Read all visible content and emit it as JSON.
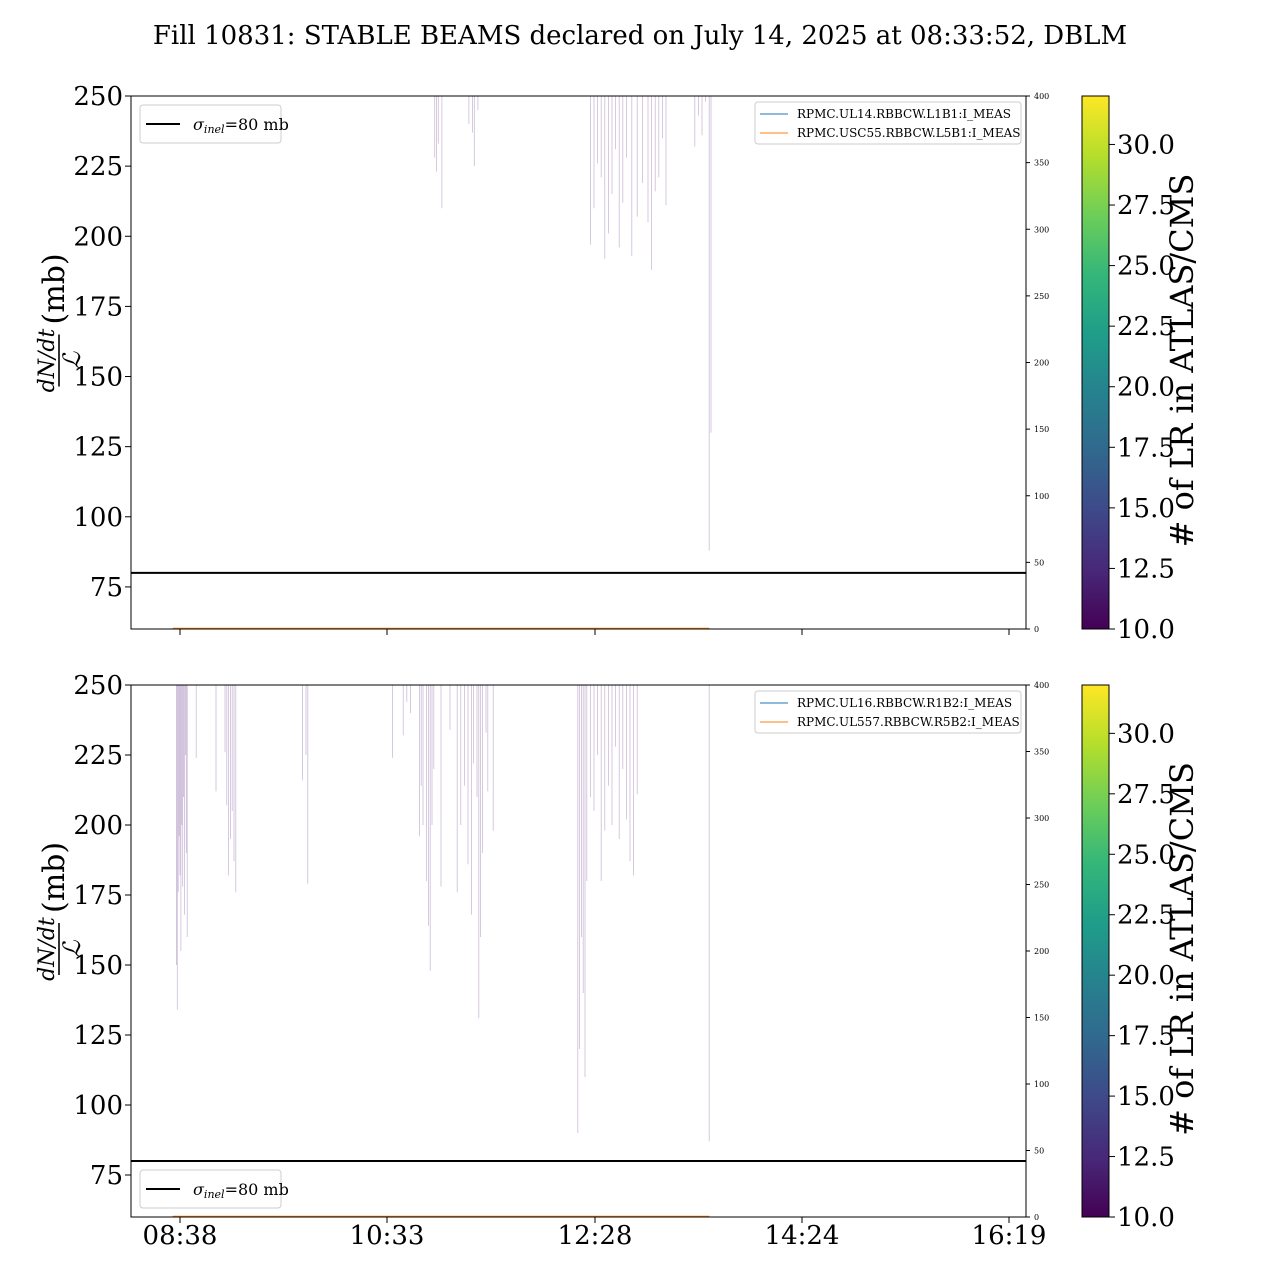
{
  "title": "Fill 10831: STABLE BEAMS declared on July 14, 2025 at 08:33:52, DBLM",
  "colors": {
    "sigma_line": "#000000",
    "series_1": "#1f77b4",
    "series_2": "#ff7f0e",
    "spikes": "#8e6aa8",
    "colorbar_stops": [
      "#440154",
      "#482878",
      "#3e4989",
      "#31688e",
      "#26828e",
      "#1f9e89",
      "#35b779",
      "#6ece58",
      "#b5de2b",
      "#fde725"
    ]
  },
  "chart_data": [
    {
      "type": "line",
      "panel": "top",
      "ylabel_fraction_top": "dN/dt",
      "ylabel_fraction_bottom": "ℒ",
      "ylabel_unit": "(mb)",
      "ylim": [
        60,
        250
      ],
      "yticks": [
        75,
        100,
        125,
        150,
        175,
        200,
        225,
        250
      ],
      "xticks": [
        "08:38",
        "10:33",
        "12:28",
        "14:24",
        "16:19"
      ],
      "xtick_labels_shown": false,
      "secondary_yticks": [
        0,
        50,
        100,
        150,
        200,
        250,
        300,
        350,
        400
      ],
      "secondary_ylim": [
        0,
        400
      ],
      "sigma_inel": {
        "value": 80,
        "label": "σ",
        "subscript": "inel",
        "suffix": "=80 mb"
      },
      "sigma_legend_position": "top-left",
      "series_legend_position": "top-right",
      "series": [
        {
          "name": "RPMC.UL14.RBBCW.L1B1:I_MEAS",
          "color": "#1f77b4"
        },
        {
          "name": "RPMC.USC55.RBBCW.L5B1:I_MEAS",
          "color": "#ff7f0e"
        }
      ],
      "spikes": [
        {
          "x_min": 141.5,
          "min": 228
        },
        {
          "x_min": 142.5,
          "min": 223
        },
        {
          "x_min": 143.5,
          "min": 233
        },
        {
          "x_min": 145.5,
          "min": 210
        },
        {
          "x_min": 160.5,
          "min": 240
        },
        {
          "x_min": 162.5,
          "min": 237
        },
        {
          "x_min": 163.5,
          "min": 225
        },
        {
          "x_min": 165.5,
          "min": 245
        },
        {
          "x_min": 228,
          "min": 197
        },
        {
          "x_min": 230,
          "min": 210
        },
        {
          "x_min": 232,
          "min": 226
        },
        {
          "x_min": 234,
          "min": 221
        },
        {
          "x_min": 236,
          "min": 192
        },
        {
          "x_min": 238,
          "min": 201
        },
        {
          "x_min": 240,
          "min": 215
        },
        {
          "x_min": 242,
          "min": 231
        },
        {
          "x_min": 244,
          "min": 196
        },
        {
          "x_min": 246,
          "min": 212
        },
        {
          "x_min": 248,
          "min": 228
        },
        {
          "x_min": 251,
          "min": 193
        },
        {
          "x_min": 254,
          "min": 207
        },
        {
          "x_min": 257,
          "min": 219
        },
        {
          "x_min": 260,
          "min": 205
        },
        {
          "x_min": 262,
          "min": 188
        },
        {
          "x_min": 264,
          "min": 216
        },
        {
          "x_min": 266,
          "min": 221
        },
        {
          "x_min": 268,
          "min": 235
        },
        {
          "x_min": 270,
          "min": 211
        },
        {
          "x_min": 286,
          "min": 232
        },
        {
          "x_min": 288,
          "min": 243
        },
        {
          "x_min": 290,
          "min": 236
        },
        {
          "x_min": 292,
          "min": 248
        },
        {
          "x_min": 294,
          "min": 88
        },
        {
          "x_min": 295,
          "min": 130
        }
      ]
    },
    {
      "type": "line",
      "panel": "bottom",
      "ylabel_fraction_top": "dN/dt",
      "ylabel_fraction_bottom": "ℒ",
      "ylabel_unit": "(mb)",
      "ylim": [
        60,
        250
      ],
      "yticks": [
        75,
        100,
        125,
        150,
        175,
        200,
        225,
        250
      ],
      "xticks": [
        "08:38",
        "10:33",
        "12:28",
        "14:24",
        "16:19"
      ],
      "xtick_labels_shown": true,
      "secondary_yticks": [
        0,
        50,
        100,
        150,
        200,
        250,
        300,
        350,
        400
      ],
      "secondary_ylim": [
        0,
        400
      ],
      "sigma_inel": {
        "value": 80,
        "label": "σ",
        "subscript": "inel",
        "suffix": "=80 mb"
      },
      "sigma_legend_position": "bottom-left",
      "series_legend_position": "top-right",
      "series": [
        {
          "name": "RPMC.UL16.RBBCW.R1B2:I_MEAS",
          "color": "#1f77b4"
        },
        {
          "name": "RPMC.UL557.RBBCW.R5B2:I_MEAS",
          "color": "#ff7f0e"
        }
      ],
      "spikes": [
        {
          "x_min": -2,
          "min": 150
        },
        {
          "x_min": -1.5,
          "min": 134
        },
        {
          "x_min": -1,
          "min": 176
        },
        {
          "x_min": -0.5,
          "min": 196
        },
        {
          "x_min": 0,
          "min": 182
        },
        {
          "x_min": 0.5,
          "min": 155
        },
        {
          "x_min": 1,
          "min": 200
        },
        {
          "x_min": 1.5,
          "min": 178
        },
        {
          "x_min": 2,
          "min": 210
        },
        {
          "x_min": 2.5,
          "min": 168
        },
        {
          "x_min": 3,
          "min": 225
        },
        {
          "x_min": 3.5,
          "min": 190
        },
        {
          "x_min": 4,
          "min": 160
        },
        {
          "x_min": 9,
          "min": 224
        },
        {
          "x_min": 20,
          "min": 212
        },
        {
          "x_min": 25,
          "min": 226
        },
        {
          "x_min": 26,
          "min": 207
        },
        {
          "x_min": 27,
          "min": 182
        },
        {
          "x_min": 28,
          "min": 195
        },
        {
          "x_min": 29,
          "min": 205
        },
        {
          "x_min": 30,
          "min": 187
        },
        {
          "x_min": 31,
          "min": 176
        },
        {
          "x_min": 68,
          "min": 216
        },
        {
          "x_min": 70,
          "min": 225
        },
        {
          "x_min": 71,
          "min": 179
        },
        {
          "x_min": 118,
          "min": 224
        },
        {
          "x_min": 124,
          "min": 232
        },
        {
          "x_min": 126,
          "min": 244
        },
        {
          "x_min": 128,
          "min": 240
        },
        {
          "x_min": 133,
          "min": 196
        },
        {
          "x_min": 134,
          "min": 214
        },
        {
          "x_min": 135,
          "min": 200
        },
        {
          "x_min": 137,
          "min": 180
        },
        {
          "x_min": 138,
          "min": 164
        },
        {
          "x_min": 139,
          "min": 148
        },
        {
          "x_min": 140,
          "min": 200
        },
        {
          "x_min": 141,
          "min": 220
        },
        {
          "x_min": 145,
          "min": 178
        },
        {
          "x_min": 150,
          "min": 234
        },
        {
          "x_min": 154,
          "min": 176
        },
        {
          "x_min": 156,
          "min": 200
        },
        {
          "x_min": 158,
          "min": 214
        },
        {
          "x_min": 160,
          "min": 186
        },
        {
          "x_min": 162,
          "min": 168
        },
        {
          "x_min": 163,
          "min": 222
        },
        {
          "x_min": 165,
          "min": 210
        },
        {
          "x_min": 166,
          "min": 131
        },
        {
          "x_min": 167,
          "min": 160
        },
        {
          "x_min": 168,
          "min": 190
        },
        {
          "x_min": 170,
          "min": 233
        },
        {
          "x_min": 171,
          "min": 212
        },
        {
          "x_min": 174,
          "min": 198
        },
        {
          "x_min": 221,
          "min": 90
        },
        {
          "x_min": 222,
          "min": 120
        },
        {
          "x_min": 223,
          "min": 160
        },
        {
          "x_min": 224,
          "min": 140
        },
        {
          "x_min": 225,
          "min": 110
        },
        {
          "x_min": 226,
          "min": 180
        },
        {
          "x_min": 228,
          "min": 210
        },
        {
          "x_min": 230,
          "min": 205
        },
        {
          "x_min": 232,
          "min": 225
        },
        {
          "x_min": 234,
          "min": 180
        },
        {
          "x_min": 236,
          "min": 198
        },
        {
          "x_min": 238,
          "min": 214
        },
        {
          "x_min": 240,
          "min": 200
        },
        {
          "x_min": 242,
          "min": 228
        },
        {
          "x_min": 244,
          "min": 195
        },
        {
          "x_min": 246,
          "min": 220
        },
        {
          "x_min": 248,
          "min": 202
        },
        {
          "x_min": 250,
          "min": 187
        },
        {
          "x_min": 252,
          "min": 182
        },
        {
          "x_min": 254,
          "min": 211
        },
        {
          "x_min": 294,
          "min": 87
        }
      ]
    }
  ],
  "colorbar": {
    "label": "# of LR in ATLAS/CMS",
    "range": [
      10,
      32
    ],
    "ticks": [
      "10.0",
      "12.5",
      "15.0",
      "17.5",
      "20.0",
      "22.5",
      "25.0",
      "27.5",
      "30.0"
    ]
  }
}
